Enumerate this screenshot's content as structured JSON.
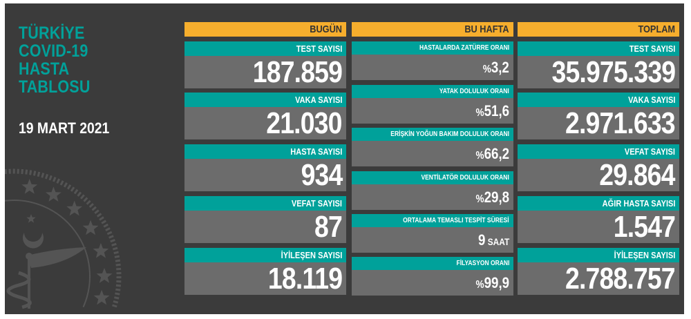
{
  "colors": {
    "background": "#3b3b3b",
    "accent_teal": "#00a19a",
    "header_orange": "#f6ae2d",
    "value_box": "#6c6c6c"
  },
  "emblem": {
    "icon": "ministry-of-health-emblem-watermark"
  },
  "title": {
    "lines": [
      "TÜRKİYE",
      "COVID-19",
      "HASTA",
      "TABLOSU"
    ],
    "date": "19 MART 2021"
  },
  "today": {
    "header": "BUGÜN",
    "items": [
      {
        "label": "TEST SAYISI",
        "value": "187.859"
      },
      {
        "label": "VAKA SAYISI",
        "value": "21.030"
      },
      {
        "label": "HASTA SAYISI",
        "value": "934"
      },
      {
        "label": "VEFAT SAYISI",
        "value": "87"
      },
      {
        "label": "İYİLEŞEN SAYISI",
        "value": "18.119"
      }
    ]
  },
  "week": {
    "header": "BU HAFTA",
    "items": [
      {
        "label": "HASTALARDA ZATÜRRE ORANI",
        "prefix": "%",
        "value": "3,2",
        "suffix": ""
      },
      {
        "label": "YATAK DOLULUK ORANI",
        "prefix": "%",
        "value": "51,6",
        "suffix": ""
      },
      {
        "label": "ERİŞKİN YOĞUN BAKIM DOLULUK ORANI",
        "prefix": "%",
        "value": "66,2",
        "suffix": ""
      },
      {
        "label": "VENTİLATÖR DOLULUK ORANI",
        "prefix": "%",
        "value": "29,8",
        "suffix": ""
      },
      {
        "label": "ORTALAMA TEMASLI TESPİT SÜRESİ",
        "prefix": "",
        "value": "9",
        "suffix": " SAAT"
      },
      {
        "label": "FİLYASYON ORANI",
        "prefix": "%",
        "value": "99,9",
        "suffix": ""
      }
    ]
  },
  "total": {
    "header": "TOPLAM",
    "items": [
      {
        "label": "TEST SAYISI",
        "value": "35.975.339"
      },
      {
        "label": "VAKA SAYISI",
        "value": "2.971.633"
      },
      {
        "label": "VEFAT SAYISI",
        "value": "29.864"
      },
      {
        "label": "AĞIR HASTA SAYISI",
        "value": "1.547"
      },
      {
        "label": "İYİLEŞEN SAYISI",
        "value": "2.788.757"
      }
    ]
  }
}
